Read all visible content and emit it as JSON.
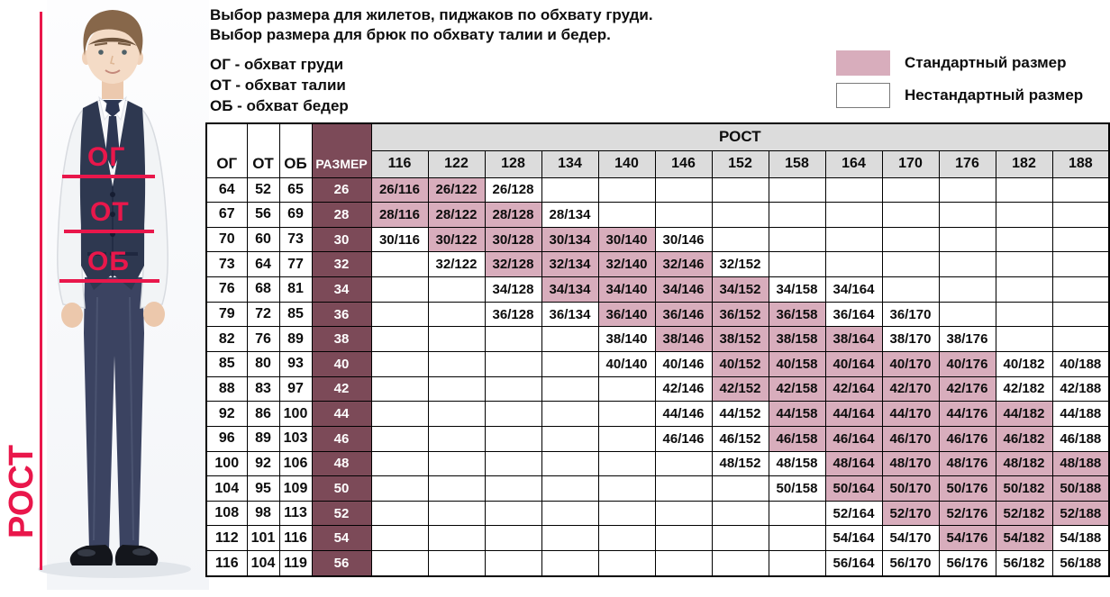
{
  "intro": {
    "line1": "Выбор размера для жилетов, пиджаков по обхвату груди.",
    "line2": "Выбор размера для брюк по обхвату талии и бедер.",
    "abbr": [
      "ОГ - обхват груди",
      "ОТ - обхват талии",
      "ОБ - обхват бедер"
    ]
  },
  "legend": {
    "standard_label": "Стандартный размер",
    "nonstandard_label": "Нестандартный размер"
  },
  "photo": {
    "labels": {
      "chest": "ОГ",
      "waist": "ОТ",
      "hips": "ОБ",
      "height": "РОСТ"
    }
  },
  "colors": {
    "standard_pink": "#d8adbc",
    "size_maroon": "#7c4a58",
    "header_grey": "#dcdcdc",
    "annotation_red": "#e9174b"
  },
  "chart_data": {
    "type": "table",
    "corner_headers": [
      "ОГ",
      "ОТ",
      "ОБ",
      "РАЗМЕР"
    ],
    "group_header": "РОСТ",
    "heights": [
      116,
      122,
      128,
      134,
      140,
      146,
      152,
      158,
      164,
      170,
      176,
      182,
      188
    ],
    "legend": [
      {
        "label": "Стандартный размер",
        "style": "standard"
      },
      {
        "label": "Нестандартный размер",
        "style": "nonstandard"
      }
    ],
    "cell_encoding": "empty string = no size; 's|value' = standard size (pink); 'n|value' = non-standard size (white)",
    "rows": [
      {
        "og": 64,
        "ot": 52,
        "ob": 65,
        "size": 26,
        "cells": [
          "s|26/116",
          "s|26/122",
          "n|26/128",
          "",
          "",
          "",
          "",
          "",
          "",
          "",
          "",
          "",
          ""
        ]
      },
      {
        "og": 67,
        "ot": 56,
        "ob": 69,
        "size": 28,
        "cells": [
          "s|28/116",
          "s|28/122",
          "s|28/128",
          "n|28/134",
          "",
          "",
          "",
          "",
          "",
          "",
          "",
          "",
          ""
        ]
      },
      {
        "og": 70,
        "ot": 60,
        "ob": 73,
        "size": 30,
        "cells": [
          "n|30/116",
          "s|30/122",
          "s|30/128",
          "s|30/134",
          "s|30/140",
          "n|30/146",
          "",
          "",
          "",
          "",
          "",
          "",
          ""
        ]
      },
      {
        "og": 73,
        "ot": 64,
        "ob": 77,
        "size": 32,
        "cells": [
          "",
          "n|32/122",
          "s|32/128",
          "s|32/134",
          "s|32/140",
          "s|32/146",
          "n|32/152",
          "",
          "",
          "",
          "",
          "",
          ""
        ]
      },
      {
        "og": 76,
        "ot": 68,
        "ob": 81,
        "size": 34,
        "cells": [
          "",
          "",
          "n|34/128",
          "s|34/134",
          "s|34/140",
          "s|34/146",
          "s|34/152",
          "n|34/158",
          "n|34/164",
          "",
          "",
          "",
          ""
        ]
      },
      {
        "og": 79,
        "ot": 72,
        "ob": 85,
        "size": 36,
        "cells": [
          "",
          "",
          "n|36/128",
          "n|36/134",
          "s|36/140",
          "s|36/146",
          "s|36/152",
          "s|36/158",
          "n|36/164",
          "n|36/170",
          "",
          "",
          ""
        ]
      },
      {
        "og": 82,
        "ot": 76,
        "ob": 89,
        "size": 38,
        "cells": [
          "",
          "",
          "",
          "",
          "n|38/140",
          "s|38/146",
          "s|38/152",
          "s|38/158",
          "s|38/164",
          "n|38/170",
          "n|38/176",
          "",
          ""
        ]
      },
      {
        "og": 85,
        "ot": 80,
        "ob": 93,
        "size": 40,
        "cells": [
          "",
          "",
          "",
          "",
          "n|40/140",
          "n|40/146",
          "s|40/152",
          "s|40/158",
          "s|40/164",
          "s|40/170",
          "s|40/176",
          "n|40/182",
          "n|40/188"
        ]
      },
      {
        "og": 88,
        "ot": 83,
        "ob": 97,
        "size": 42,
        "cells": [
          "",
          "",
          "",
          "",
          "",
          "n|42/146",
          "s|42/152",
          "s|42/158",
          "s|42/164",
          "s|42/170",
          "s|42/176",
          "n|42/182",
          "n|42/188"
        ]
      },
      {
        "og": 92,
        "ot": 86,
        "ob": 100,
        "size": 44,
        "cells": [
          "",
          "",
          "",
          "",
          "",
          "n|44/146",
          "n|44/152",
          "s|44/158",
          "s|44/164",
          "s|44/170",
          "s|44/176",
          "s|44/182",
          "n|44/188"
        ]
      },
      {
        "og": 96,
        "ot": 89,
        "ob": 103,
        "size": 46,
        "cells": [
          "",
          "",
          "",
          "",
          "",
          "n|46/146",
          "n|46/152",
          "s|46/158",
          "s|46/164",
          "s|46/170",
          "s|46/176",
          "s|46/182",
          "n|46/188"
        ]
      },
      {
        "og": 100,
        "ot": 92,
        "ob": 106,
        "size": 48,
        "cells": [
          "",
          "",
          "",
          "",
          "",
          "",
          "n|48/152",
          "n|48/158",
          "s|48/164",
          "s|48/170",
          "s|48/176",
          "s|48/182",
          "s|48/188"
        ]
      },
      {
        "og": 104,
        "ot": 95,
        "ob": 109,
        "size": 50,
        "cells": [
          "",
          "",
          "",
          "",
          "",
          "",
          "",
          "n|50/158",
          "s|50/164",
          "s|50/170",
          "s|50/176",
          "s|50/182",
          "s|50/188"
        ]
      },
      {
        "og": 108,
        "ot": 98,
        "ob": 113,
        "size": 52,
        "cells": [
          "",
          "",
          "",
          "",
          "",
          "",
          "",
          "",
          "n|52/164",
          "s|52/170",
          "s|52/176",
          "s|52/182",
          "s|52/188"
        ]
      },
      {
        "og": 112,
        "ot": 101,
        "ob": 116,
        "size": 54,
        "cells": [
          "",
          "",
          "",
          "",
          "",
          "",
          "",
          "",
          "n|54/164",
          "n|54/170",
          "s|54/176",
          "s|54/182",
          "n|54/188"
        ]
      },
      {
        "og": 116,
        "ot": 104,
        "ob": 119,
        "size": 56,
        "cells": [
          "",
          "",
          "",
          "",
          "",
          "",
          "",
          "",
          "n|56/164",
          "n|56/170",
          "n|56/176",
          "n|56/182",
          "n|56/188"
        ]
      }
    ]
  }
}
